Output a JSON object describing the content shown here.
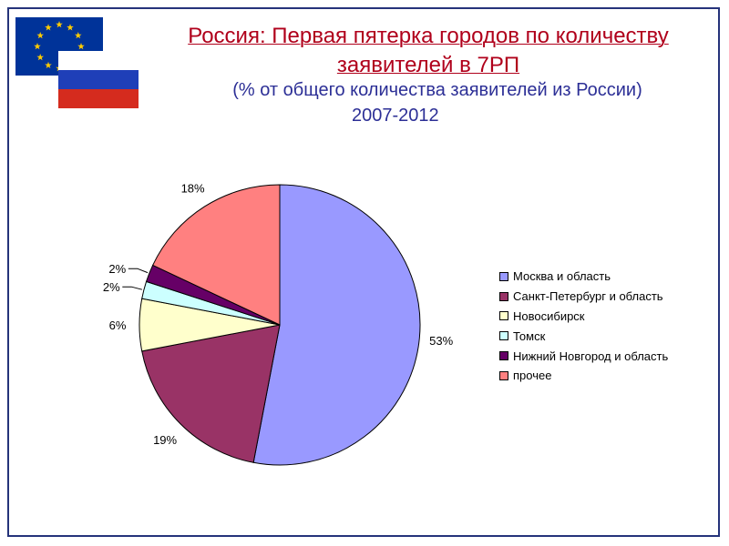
{
  "header": {
    "title_line1": "Россия: Первая пятерка городов по количеству",
    "title_line2": "заявителей в 7РП",
    "subtitle": "(% от общего количества заявителей из России)",
    "period": "2007-2012"
  },
  "flags": {
    "eu": {
      "background": "#003399",
      "stars": "#ffcc00",
      "icon": "eu-flag"
    },
    "ru": {
      "colors": [
        "#ffffff",
        "#1f3fb8",
        "#d52b1e"
      ],
      "icon": "russia-flag"
    }
  },
  "chart_data": {
    "type": "pie",
    "start_angle": "12 o'clock, clockwise",
    "label_format": "percent",
    "legend_position": "right",
    "slices": [
      {
        "name": "Москва и область",
        "value": 53,
        "label": "53%",
        "color": "#9999ff"
      },
      {
        "name": "Санкт-Петербург и область",
        "value": 19,
        "label": "19%",
        "color": "#993366"
      },
      {
        "name": "Новосибирск",
        "value": 6,
        "label": "6%",
        "color": "#ffffcc"
      },
      {
        "name": "Томск",
        "value": 2,
        "label": "2%",
        "color": "#ccffff"
      },
      {
        "name": "Нижний Новгород и область",
        "value": 2,
        "label": "2%",
        "color": "#660066"
      },
      {
        "name": "прочее",
        "value": 18,
        "label": "18%",
        "color": "#ff8080"
      }
    ]
  }
}
